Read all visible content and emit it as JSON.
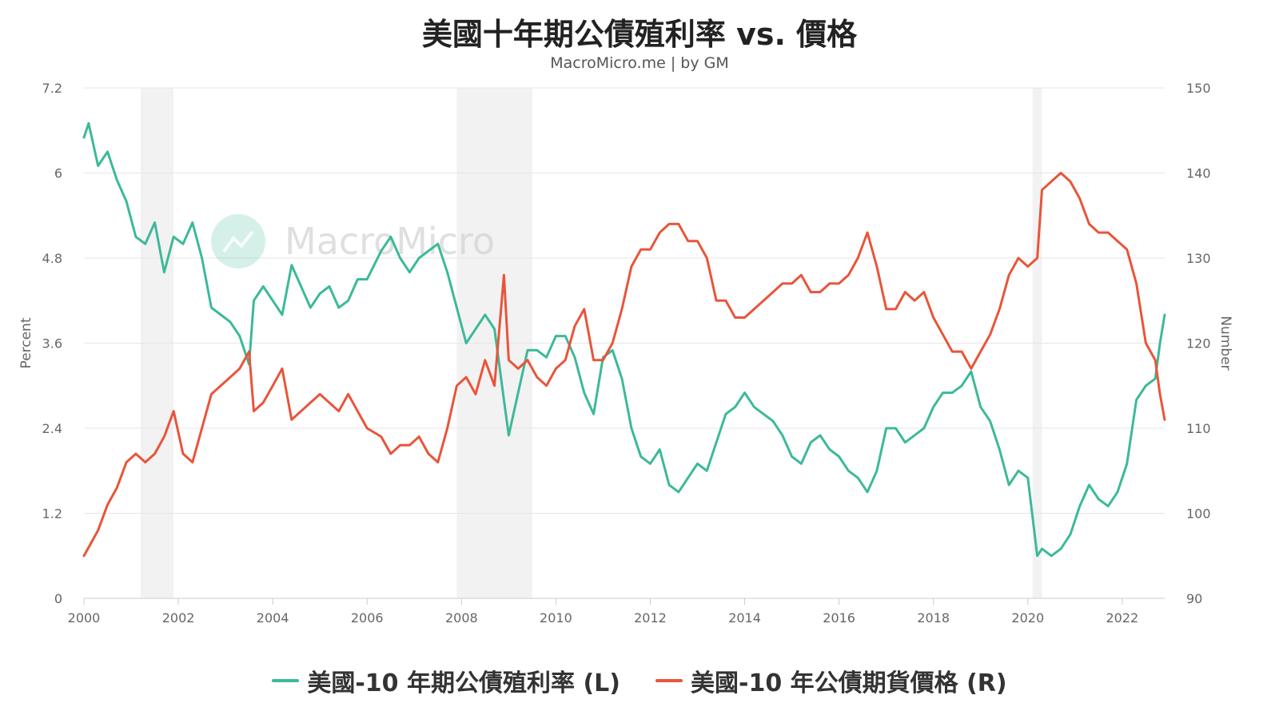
{
  "title": "美國十年期公債殖利率 vs. 價格",
  "subtitle": "MacroMicro.me | by GM",
  "watermark": "MacroMicro",
  "chart_data": {
    "type": "line",
    "x_axis": {
      "min": 2000,
      "max": 2022.9,
      "ticks": [
        "2000",
        "2002",
        "2004",
        "2006",
        "2008",
        "2010",
        "2012",
        "2014",
        "2016",
        "2018",
        "2020",
        "2022"
      ]
    },
    "y_left": {
      "label": "Percent",
      "min": 0,
      "max": 7.2,
      "ticks": [
        "0",
        "1.2",
        "2.4",
        "3.6",
        "4.8",
        "6",
        "7.2"
      ]
    },
    "y_right": {
      "label": "Number",
      "min": 90,
      "max": 150,
      "ticks": [
        "90",
        "100",
        "110",
        "120",
        "130",
        "140",
        "150"
      ]
    },
    "grid": true,
    "legend_position": "bottom",
    "shaded_periods": [
      [
        2001.2,
        2001.9
      ],
      [
        2007.9,
        2009.5
      ],
      [
        2020.1,
        2020.3
      ]
    ],
    "series": [
      {
        "name": "美國-10 年期公債殖利率 (L)",
        "axis": "left",
        "color": "#3cb99a",
        "x": [
          2000.0,
          2000.1,
          2000.3,
          2000.5,
          2000.7,
          2000.9,
          2001.1,
          2001.3,
          2001.5,
          2001.7,
          2001.9,
          2002.1,
          2002.3,
          2002.5,
          2002.7,
          2002.9,
          2003.1,
          2003.3,
          2003.5,
          2003.6,
          2003.8,
          2004.0,
          2004.2,
          2004.4,
          2004.6,
          2004.8,
          2005.0,
          2005.2,
          2005.4,
          2005.6,
          2005.8,
          2006.0,
          2006.3,
          2006.5,
          2006.7,
          2006.9,
          2007.1,
          2007.3,
          2007.5,
          2007.7,
          2007.9,
          2008.1,
          2008.3,
          2008.5,
          2008.7,
          2008.9,
          2009.0,
          2009.2,
          2009.4,
          2009.6,
          2009.8,
          2010.0,
          2010.2,
          2010.4,
          2010.6,
          2010.8,
          2011.0,
          2011.2,
          2011.4,
          2011.6,
          2011.8,
          2012.0,
          2012.2,
          2012.4,
          2012.6,
          2012.8,
          2013.0,
          2013.2,
          2013.4,
          2013.6,
          2013.8,
          2014.0,
          2014.2,
          2014.4,
          2014.6,
          2014.8,
          2015.0,
          2015.2,
          2015.4,
          2015.6,
          2015.8,
          2016.0,
          2016.2,
          2016.4,
          2016.6,
          2016.8,
          2017.0,
          2017.2,
          2017.4,
          2017.6,
          2017.8,
          2018.0,
          2018.2,
          2018.4,
          2018.6,
          2018.8,
          2019.0,
          2019.2,
          2019.4,
          2019.6,
          2019.8,
          2020.0,
          2020.2,
          2020.3,
          2020.5,
          2020.7,
          2020.9,
          2021.1,
          2021.3,
          2021.5,
          2021.7,
          2021.9,
          2022.1,
          2022.3,
          2022.5,
          2022.7,
          2022.8,
          2022.9
        ],
        "values": [
          6.5,
          6.7,
          6.1,
          6.3,
          5.9,
          5.6,
          5.1,
          5.0,
          5.3,
          4.6,
          5.1,
          5.0,
          5.3,
          4.8,
          4.1,
          4.0,
          3.9,
          3.7,
          3.3,
          4.2,
          4.4,
          4.2,
          4.0,
          4.7,
          4.4,
          4.1,
          4.3,
          4.4,
          4.1,
          4.2,
          4.5,
          4.5,
          4.9,
          5.1,
          4.8,
          4.6,
          4.8,
          4.9,
          5.0,
          4.6,
          4.1,
          3.6,
          3.8,
          4.0,
          3.8,
          2.8,
          2.3,
          2.9,
          3.5,
          3.5,
          3.4,
          3.7,
          3.7,
          3.4,
          2.9,
          2.6,
          3.4,
          3.5,
          3.1,
          2.4,
          2.0,
          1.9,
          2.1,
          1.6,
          1.5,
          1.7,
          1.9,
          1.8,
          2.2,
          2.6,
          2.7,
          2.9,
          2.7,
          2.6,
          2.5,
          2.3,
          2.0,
          1.9,
          2.2,
          2.3,
          2.1,
          2.0,
          1.8,
          1.7,
          1.5,
          1.8,
          2.4,
          2.4,
          2.2,
          2.3,
          2.4,
          2.7,
          2.9,
          2.9,
          3.0,
          3.2,
          2.7,
          2.5,
          2.1,
          1.6,
          1.8,
          1.7,
          0.6,
          0.7,
          0.6,
          0.7,
          0.9,
          1.3,
          1.6,
          1.4,
          1.3,
          1.5,
          1.9,
          2.8,
          3.0,
          3.1,
          3.6,
          4.0
        ]
      },
      {
        "name": "美國-10 年公債期貨價格 (R)",
        "axis": "right",
        "color": "#e8553a",
        "x": [
          2000.0,
          2000.1,
          2000.3,
          2000.5,
          2000.7,
          2000.9,
          2001.1,
          2001.3,
          2001.5,
          2001.7,
          2001.9,
          2002.1,
          2002.3,
          2002.5,
          2002.7,
          2002.9,
          2003.1,
          2003.3,
          2003.5,
          2003.6,
          2003.8,
          2004.0,
          2004.2,
          2004.4,
          2004.6,
          2004.8,
          2005.0,
          2005.2,
          2005.4,
          2005.6,
          2005.8,
          2006.0,
          2006.3,
          2006.5,
          2006.7,
          2006.9,
          2007.1,
          2007.3,
          2007.5,
          2007.7,
          2007.9,
          2008.1,
          2008.3,
          2008.5,
          2008.7,
          2008.9,
          2009.0,
          2009.2,
          2009.4,
          2009.6,
          2009.8,
          2010.0,
          2010.2,
          2010.4,
          2010.6,
          2010.8,
          2011.0,
          2011.2,
          2011.4,
          2011.6,
          2011.8,
          2012.0,
          2012.2,
          2012.4,
          2012.6,
          2012.8,
          2013.0,
          2013.2,
          2013.4,
          2013.6,
          2013.8,
          2014.0,
          2014.2,
          2014.4,
          2014.6,
          2014.8,
          2015.0,
          2015.2,
          2015.4,
          2015.6,
          2015.8,
          2016.0,
          2016.2,
          2016.4,
          2016.6,
          2016.8,
          2017.0,
          2017.2,
          2017.4,
          2017.6,
          2017.8,
          2018.0,
          2018.2,
          2018.4,
          2018.6,
          2018.8,
          2019.0,
          2019.2,
          2019.4,
          2019.6,
          2019.8,
          2020.0,
          2020.2,
          2020.3,
          2020.5,
          2020.7,
          2020.9,
          2021.1,
          2021.3,
          2021.5,
          2021.7,
          2021.9,
          2022.1,
          2022.3,
          2022.5,
          2022.7,
          2022.8,
          2022.9
        ],
        "values": [
          95,
          96,
          98,
          101,
          103,
          106,
          107,
          106,
          107,
          109,
          112,
          107,
          106,
          110,
          114,
          115,
          116,
          117,
          119,
          112,
          113,
          115,
          117,
          111,
          112,
          113,
          114,
          113,
          112,
          114,
          112,
          110,
          109,
          107,
          108,
          108,
          109,
          107,
          106,
          110,
          115,
          116,
          114,
          118,
          115,
          128,
          118,
          117,
          118,
          116,
          115,
          117,
          118,
          122,
          124,
          118,
          118,
          120,
          124,
          129,
          131,
          131,
          133,
          134,
          134,
          132,
          132,
          130,
          125,
          125,
          123,
          123,
          124,
          125,
          126,
          127,
          127,
          128,
          126,
          126,
          127,
          127,
          128,
          130,
          133,
          129,
          124,
          124,
          126,
          125,
          126,
          123,
          121,
          119,
          119,
          117,
          119,
          121,
          124,
          128,
          130,
          129,
          130,
          138,
          139,
          140,
          139,
          137,
          134,
          133,
          133,
          132,
          131,
          127,
          120,
          118,
          114,
          111
        ]
      }
    ]
  },
  "legend": [
    {
      "label": "美國-10 年期公債殖利率 (L)",
      "color": "#3cb99a"
    },
    {
      "label": "美國-10 年公債期貨價格 (R)",
      "color": "#e8553a"
    }
  ]
}
